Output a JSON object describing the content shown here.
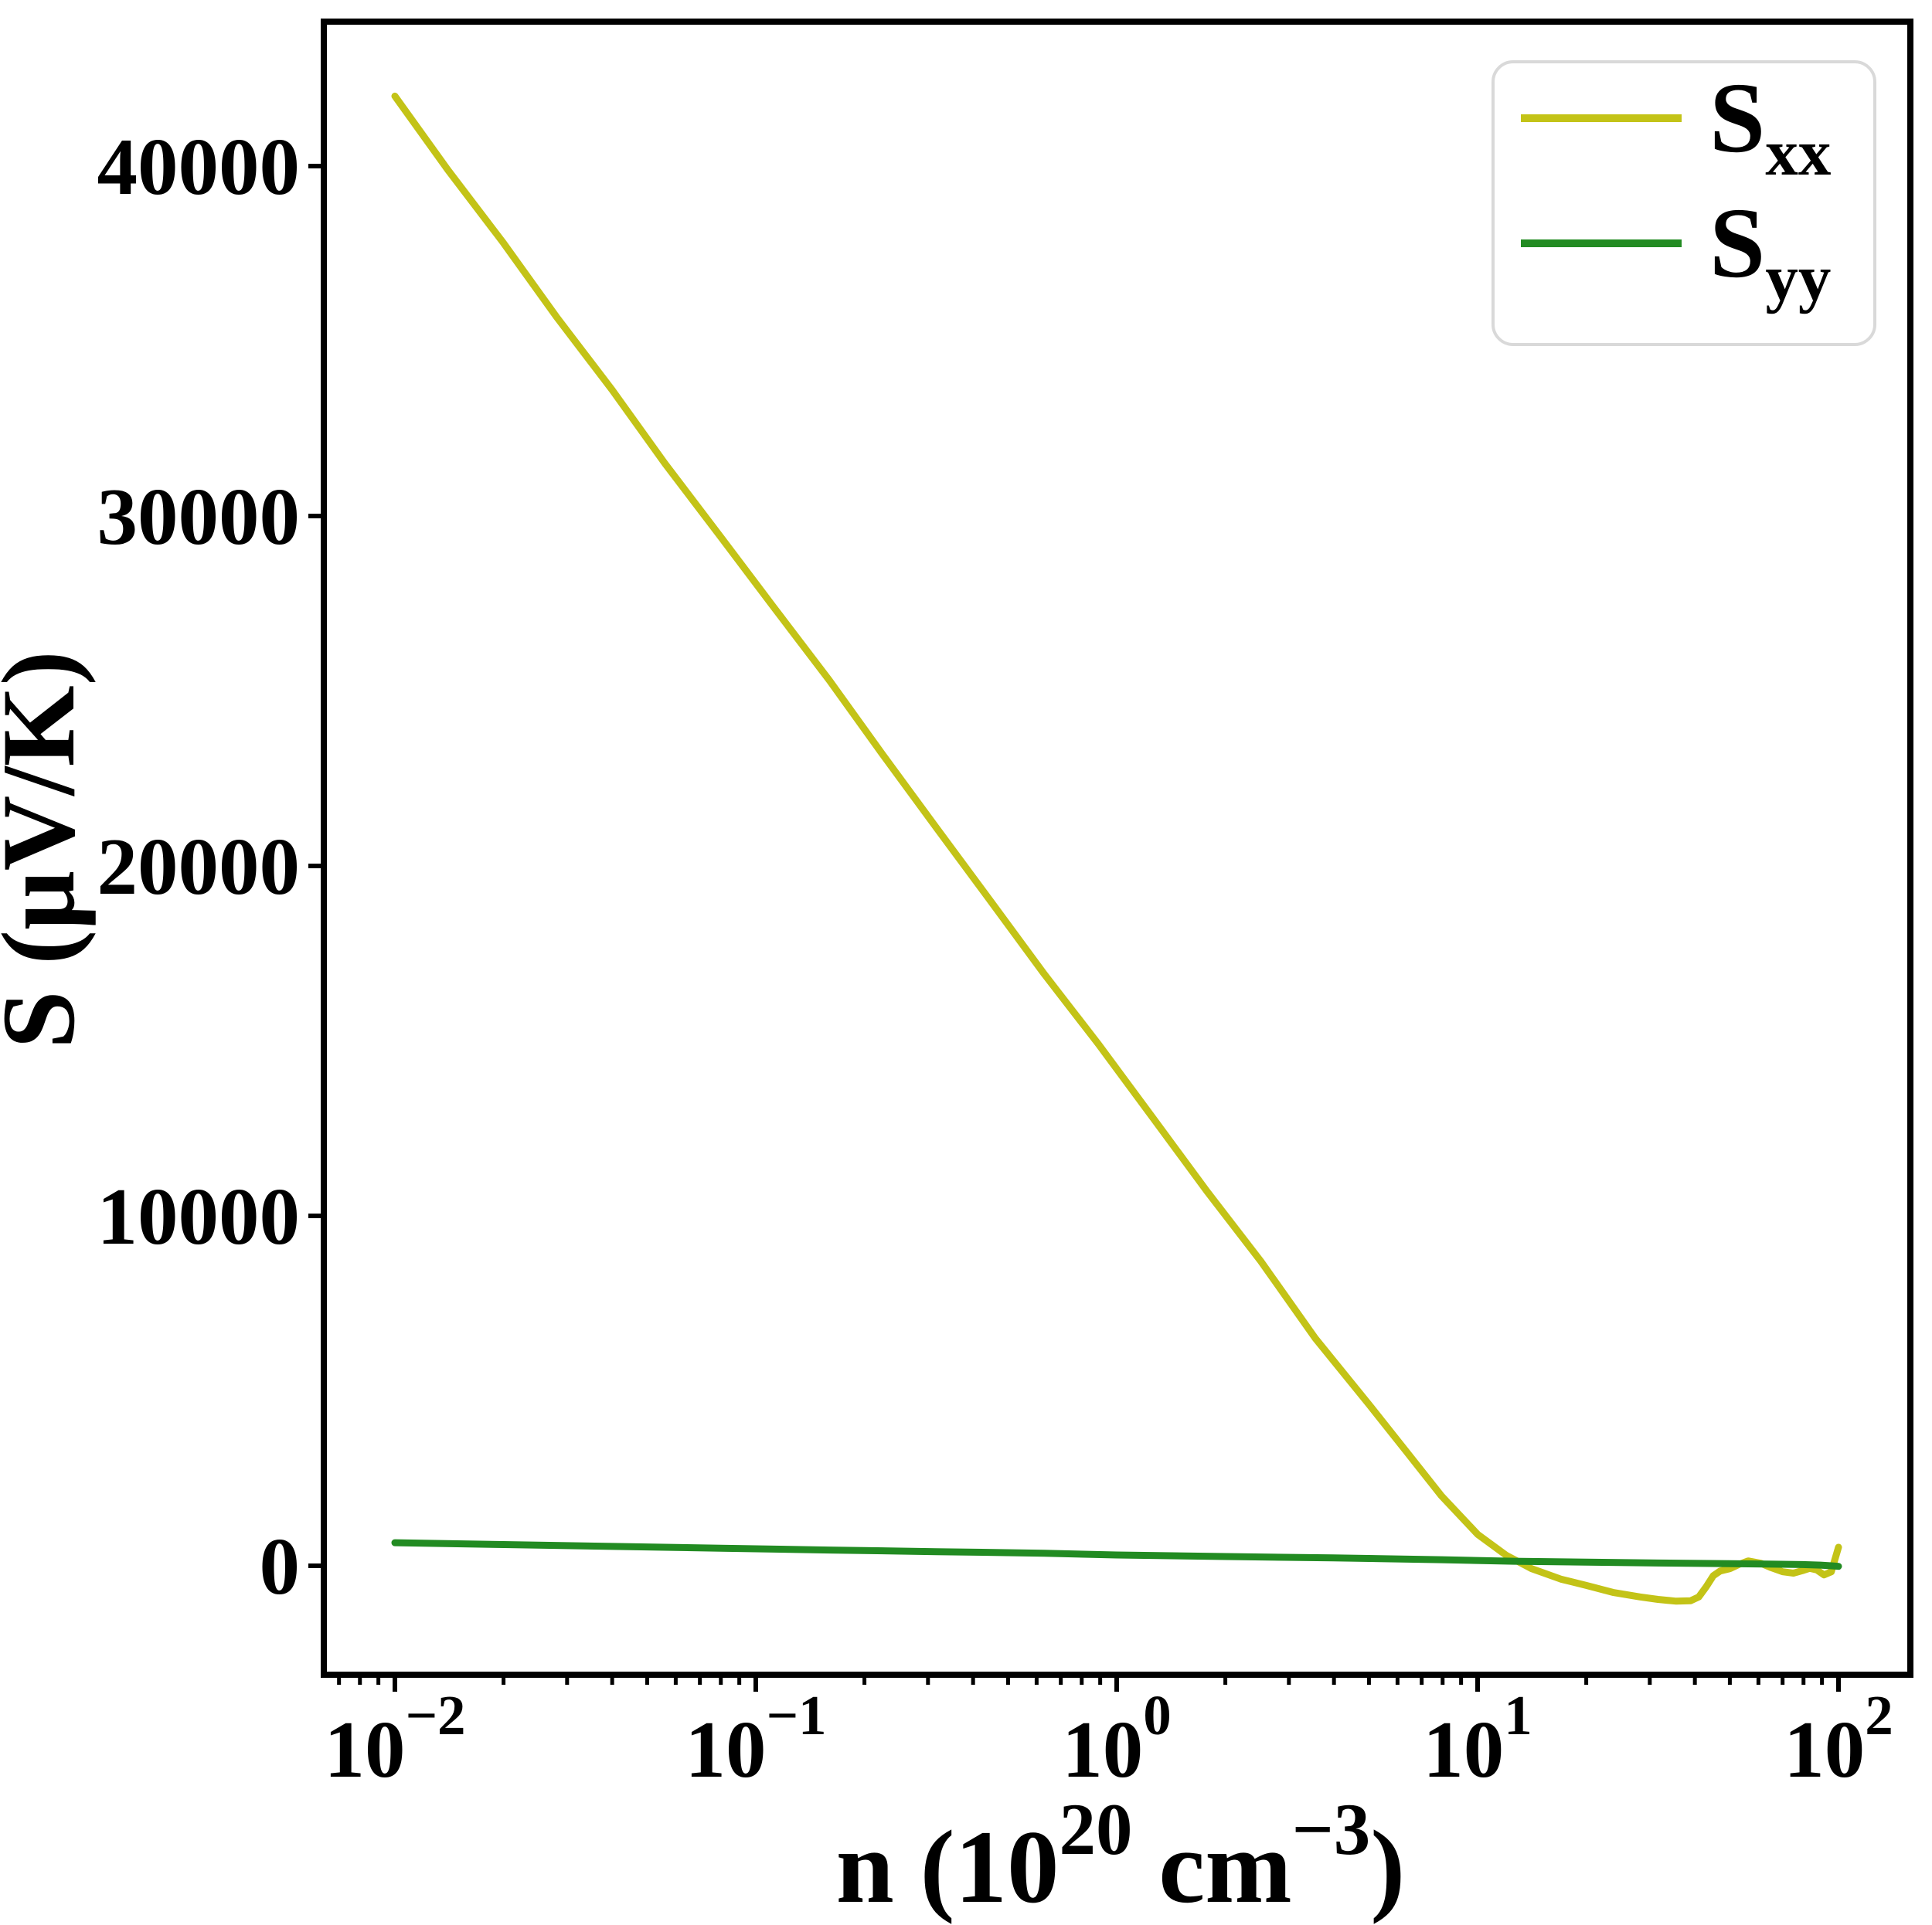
{
  "chart_data": {
    "type": "line",
    "title": "",
    "ylabel": "S (μV/K)",
    "xlabel_parts": {
      "pre": "n (10",
      "sup1": "20",
      "mid": "  cm",
      "sup2": "−3",
      "post": ")"
    },
    "x_scale": "log",
    "xlim": [
      0.00635,
      158
    ],
    "ylim": [
      -3110,
      44120
    ],
    "grid": false,
    "legend_position": "upper right",
    "xticks": {
      "values": [
        0.01,
        0.1,
        1,
        10,
        100
      ],
      "label_base": "10",
      "label_exps": [
        "−2",
        "−1",
        "0",
        "1",
        "2"
      ]
    },
    "yticks": {
      "values": [
        0,
        10000,
        20000,
        30000,
        40000
      ],
      "labels": [
        "0",
        "10000",
        "20000",
        "30000",
        "40000"
      ]
    },
    "legend": [
      {
        "base": "S",
        "sub": "xx",
        "color": "#c3c317"
      },
      {
        "base": "S",
        "sub": "yy",
        "color": "#228b22"
      }
    ],
    "series": [
      {
        "name": "Sxx",
        "color": "#c3c317",
        "x": [
          0.01,
          0.014,
          0.02,
          0.028,
          0.04,
          0.056,
          0.08,
          0.112,
          0.16,
          0.224,
          0.316,
          0.447,
          0.631,
          0.891,
          1.0,
          1.26,
          1.78,
          2.51,
          3.55,
          5.01,
          6.31,
          7.94,
          10.0,
          12.0,
          14.1,
          17.0,
          20.0,
          23.7,
          28.2,
          31.6,
          35.5,
          38.9,
          41.0,
          43.0,
          45.0,
          47.0,
          50.1,
          53.0,
          56.2,
          61.0,
          65.0,
          70.0,
          75.0,
          79.4,
          83.2,
          87.1,
          91.2,
          95.5,
          100.0
        ],
        "y": [
          42000,
          39900,
          37800,
          35700,
          33600,
          31500,
          29400,
          27400,
          25300,
          23200,
          21100,
          19000,
          16900,
          14900,
          14200,
          12800,
          10700,
          8700,
          6500,
          4600,
          3300,
          2000,
          900,
          300,
          -80,
          -380,
          -560,
          -760,
          -890,
          -960,
          -1010,
          -1000,
          -890,
          -600,
          -280,
          -150,
          -80,
          40,
          140,
          70,
          -50,
          -170,
          -210,
          -140,
          -70,
          -120,
          -260,
          -170,
          530
        ]
      },
      {
        "name": "Syy",
        "color": "#228b22",
        "x": [
          0.01,
          0.02,
          0.04,
          0.08,
          0.16,
          0.316,
          0.631,
          1.0,
          2.0,
          3.98,
          7.94,
          12.6,
          20.0,
          31.6,
          50.1,
          63.1,
          79.4,
          89.1,
          95.5,
          100.0
        ],
        "y": [
          660,
          608,
          555,
          503,
          450,
          405,
          360,
          310,
          265,
          225,
          175,
          130,
          105,
          80,
          60,
          50,
          35,
          20,
          0,
          -15
        ]
      }
    ],
    "axis_color": "#000000",
    "legend_border_color": "#d9d9d9"
  }
}
